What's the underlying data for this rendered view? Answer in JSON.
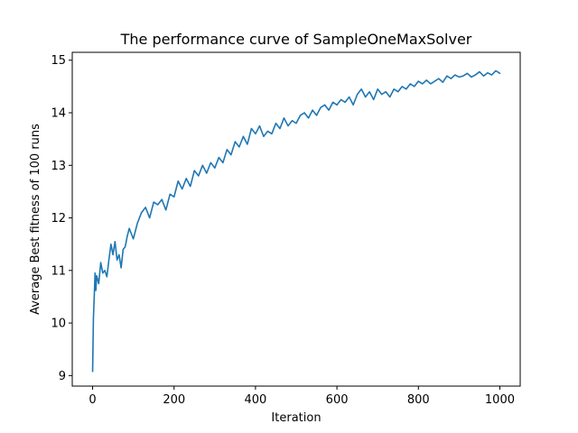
{
  "chart_data": {
    "type": "line",
    "title": "The performance curve of SampleOneMaxSolver",
    "xlabel": "Iteration",
    "ylabel": "Average Best fitness of 100 runs",
    "xlim": [
      -50,
      1050
    ],
    "ylim": [
      8.8,
      15.15
    ],
    "xticks": [
      0,
      200,
      400,
      600,
      800,
      1000
    ],
    "yticks": [
      9,
      10,
      11,
      12,
      13,
      14,
      15
    ],
    "xtick_labels": [
      "0",
      "200",
      "400",
      "600",
      "800",
      "1000"
    ],
    "ytick_labels": [
      "9",
      "10",
      "11",
      "12",
      "13",
      "14",
      "15"
    ],
    "grid": false,
    "line_color": "#1f77b4",
    "series": [
      {
        "x": [
          0,
          2,
          4,
          6,
          8,
          10,
          15,
          20,
          25,
          30,
          35,
          40,
          45,
          50,
          55,
          60,
          65,
          70,
          75,
          80,
          85,
          90,
          95,
          100,
          110,
          120,
          130,
          140,
          150,
          160,
          170,
          180,
          190,
          200,
          210,
          220,
          230,
          240,
          250,
          260,
          270,
          280,
          290,
          300,
          310,
          320,
          330,
          340,
          350,
          360,
          370,
          380,
          390,
          400,
          410,
          420,
          430,
          440,
          450,
          460,
          470,
          480,
          490,
          500,
          510,
          520,
          530,
          540,
          550,
          560,
          570,
          580,
          590,
          600,
          610,
          620,
          630,
          640,
          650,
          660,
          670,
          680,
          690,
          700,
          710,
          720,
          730,
          740,
          750,
          760,
          770,
          780,
          790,
          800,
          810,
          820,
          830,
          840,
          850,
          860,
          870,
          880,
          890,
          900,
          910,
          920,
          930,
          940,
          950,
          960,
          970,
          980,
          990,
          1000
        ],
        "y": [
          9.08,
          10.1,
          10.5,
          10.95,
          10.62,
          10.9,
          10.75,
          11.15,
          10.95,
          11.0,
          10.88,
          11.2,
          11.5,
          11.3,
          11.55,
          11.2,
          11.3,
          11.05,
          11.4,
          11.45,
          11.65,
          11.8,
          11.7,
          11.6,
          11.9,
          12.1,
          12.2,
          12.0,
          12.3,
          12.25,
          12.35,
          12.15,
          12.45,
          12.4,
          12.7,
          12.55,
          12.75,
          12.6,
          12.9,
          12.8,
          13.0,
          12.85,
          13.05,
          12.95,
          13.15,
          13.05,
          13.3,
          13.2,
          13.45,
          13.35,
          13.55,
          13.4,
          13.7,
          13.6,
          13.75,
          13.55,
          13.65,
          13.6,
          13.8,
          13.7,
          13.9,
          13.75,
          13.85,
          13.8,
          13.95,
          14.0,
          13.9,
          14.05,
          13.95,
          14.1,
          14.15,
          14.05,
          14.2,
          14.15,
          14.25,
          14.2,
          14.3,
          14.15,
          14.35,
          14.45,
          14.3,
          14.4,
          14.25,
          14.45,
          14.35,
          14.4,
          14.3,
          14.45,
          14.4,
          14.5,
          14.45,
          14.55,
          14.5,
          14.6,
          14.55,
          14.62,
          14.55,
          14.6,
          14.65,
          14.58,
          14.7,
          14.65,
          14.72,
          14.68,
          14.7,
          14.75,
          14.68,
          14.72,
          14.78,
          14.7,
          14.76,
          14.72,
          14.8,
          14.75
        ]
      }
    ]
  }
}
